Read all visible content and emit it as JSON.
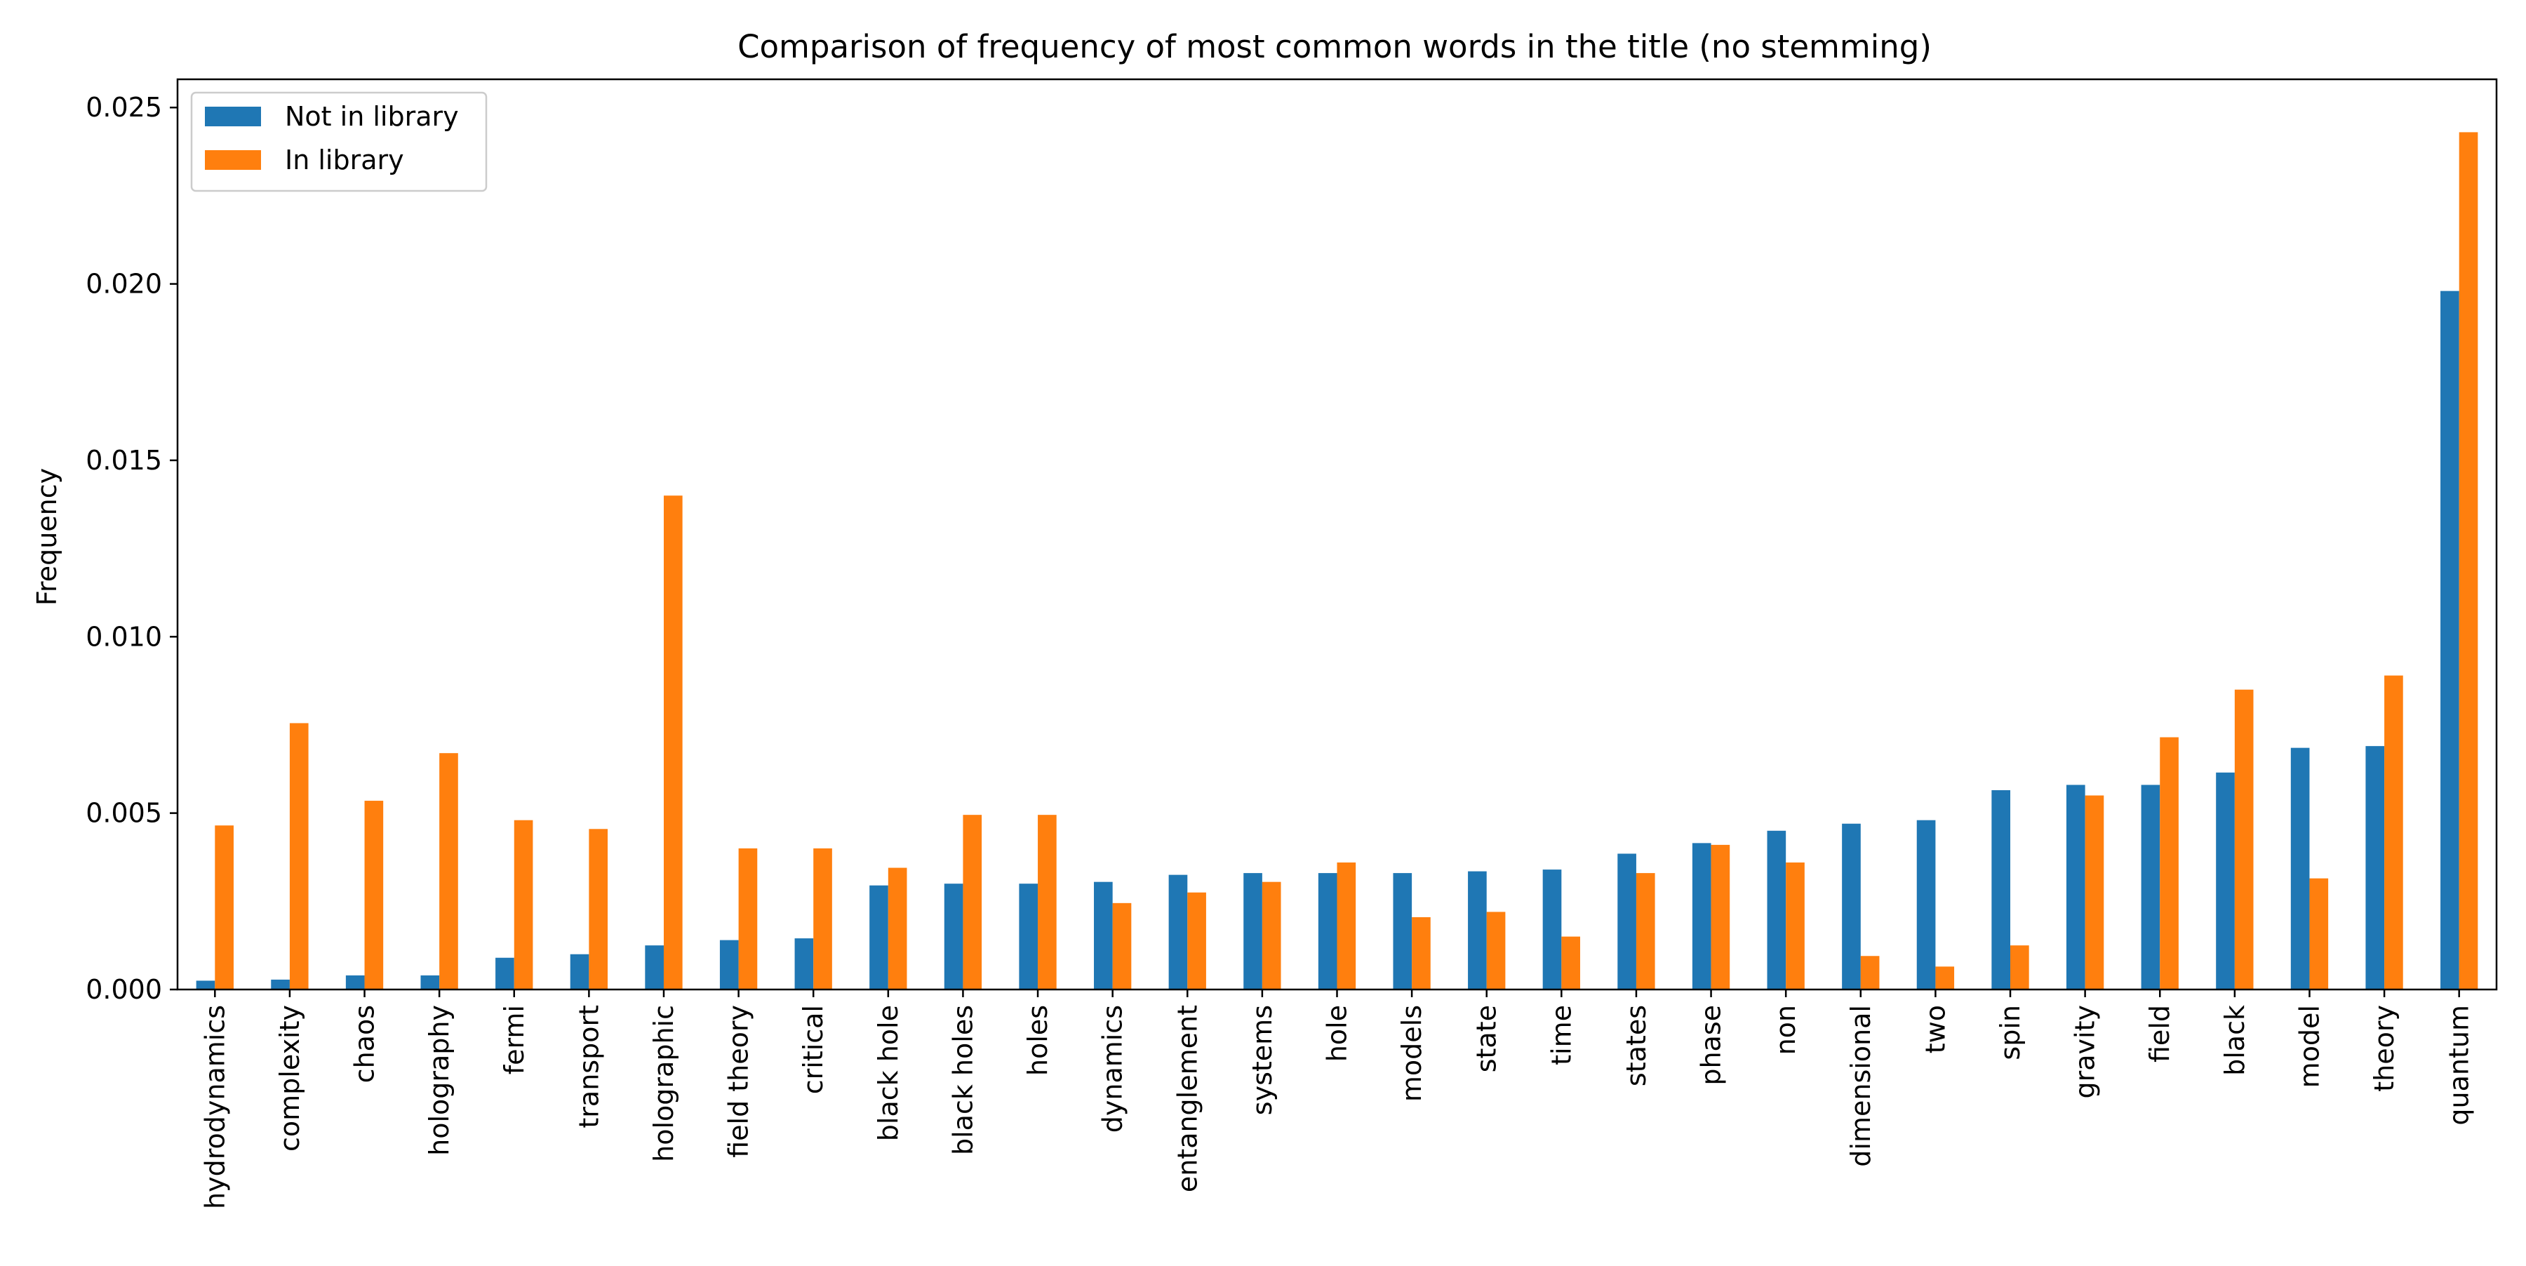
{
  "chart_data": {
    "type": "bar",
    "title": "Comparison of frequency of most common words in the title (no stemming)",
    "xlabel": "",
    "ylabel": "Frequency",
    "ylim": [
      0,
      0.0258
    ],
    "yticks": [
      "0.000",
      "0.005",
      "0.010",
      "0.015",
      "0.020",
      "0.025"
    ],
    "ytick_values": [
      0,
      0.005,
      0.01,
      0.015,
      0.02,
      0.025
    ],
    "grid": false,
    "legend_position": "top-left",
    "categories": [
      "hydrodynamics",
      "complexity",
      "chaos",
      "holography",
      "fermi",
      "transport",
      "holographic",
      "field theory",
      "critical",
      "black hole",
      "black holes",
      "holes",
      "dynamics",
      "entanglement",
      "systems",
      "hole",
      "models",
      "state",
      "time",
      "states",
      "phase",
      "non",
      "dimensional",
      "two",
      "spin",
      "gravity",
      "field",
      "black",
      "model",
      "theory",
      "quantum"
    ],
    "series": [
      {
        "name": "Not in library",
        "color": "#1f77b4",
        "values": [
          0.00025,
          0.00028,
          0.0004,
          0.0004,
          0.0009,
          0.001,
          0.00125,
          0.0014,
          0.00145,
          0.00295,
          0.003,
          0.003,
          0.00305,
          0.00325,
          0.0033,
          0.0033,
          0.0033,
          0.00335,
          0.0034,
          0.00385,
          0.00415,
          0.0045,
          0.0047,
          0.0048,
          0.00565,
          0.0058,
          0.0058,
          0.00615,
          0.00685,
          0.0069,
          0.0198
        ]
      },
      {
        "name": "In library",
        "color": "#ff7f0e",
        "values": [
          0.00465,
          0.00755,
          0.00535,
          0.0067,
          0.0048,
          0.00455,
          0.014,
          0.004,
          0.004,
          0.00345,
          0.00495,
          0.00495,
          0.00245,
          0.00275,
          0.00305,
          0.0036,
          0.00205,
          0.0022,
          0.0015,
          0.0033,
          0.0041,
          0.0036,
          0.00095,
          0.00065,
          0.00125,
          0.0055,
          0.00715,
          0.0085,
          0.00315,
          0.0089,
          0.0243
        ]
      }
    ]
  }
}
